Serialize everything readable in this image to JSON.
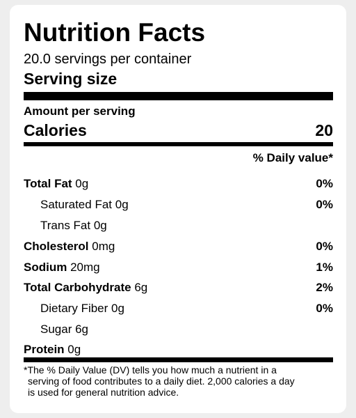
{
  "label": {
    "title": "Nutrition Facts",
    "servings_per_container": "20.0 servings per container",
    "serving_size_label": "Serving size",
    "amount_per_serving": "Amount per serving",
    "calories_label": "Calories",
    "calories_value": "20",
    "daily_value_header": "% Daily value*",
    "nutrients": [
      {
        "name": "Total Fat",
        "amount": " 0g",
        "dv": "0%",
        "bold": true,
        "indent": false
      },
      {
        "name": "Saturated Fat",
        "amount": " 0g",
        "dv": "0%",
        "bold": false,
        "indent": true
      },
      {
        "name": "Trans Fat",
        "amount": " 0g",
        "dv": "",
        "bold": false,
        "indent": true
      },
      {
        "name": "Cholesterol",
        "amount": " 0mg",
        "dv": "0%",
        "bold": true,
        "indent": false
      },
      {
        "name": "Sodium",
        "amount": " 20mg",
        "dv": "1%",
        "bold": true,
        "indent": false
      },
      {
        "name": "Total Carbohydrate",
        "amount": " 6g",
        "dv": "2%",
        "bold": true,
        "indent": false
      },
      {
        "name": "Dietary Fiber",
        "amount": " 0g",
        "dv": "0%",
        "bold": false,
        "indent": true
      },
      {
        "name": "Sugar",
        "amount": " 6g",
        "dv": "",
        "bold": false,
        "indent": true
      },
      {
        "name": "Protein",
        "amount": " 0g",
        "dv": "",
        "bold": true,
        "indent": false
      }
    ],
    "footnote_line1": "*The % Daily Value (DV) tells you how much a nutrient in a",
    "footnote_line2": "serving of food contributes to a daily diet. 2,000 calories a day",
    "footnote_line3": "is used for general nutrition advice."
  }
}
